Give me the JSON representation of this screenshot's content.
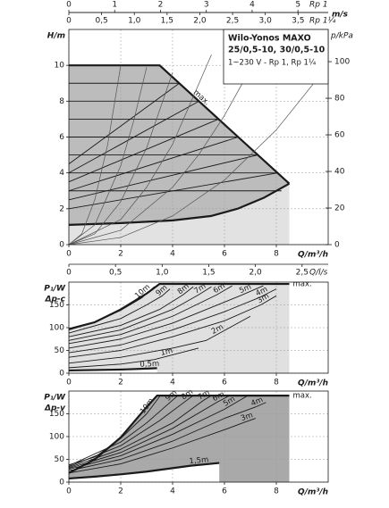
{
  "chart_data": [
    {
      "type": "line",
      "title": [
        "Wilo-Yonos MAXO",
        "25/0,5-10, 30/0,5-10"
      ],
      "subtitle": "1~230 V - Rp 1, Rp 1¼",
      "ylabel": [
        "H/m"
      ],
      "xlabel": "Q/m³/h",
      "y2label": "p/kPa",
      "xlim": [
        0,
        10
      ],
      "ylim": [
        0,
        12
      ],
      "y2lim": [
        0,
        117.6
      ],
      "xticks": [
        0,
        2,
        4,
        6,
        8
      ],
      "yticks": [
        0,
        2,
        4,
        6,
        8,
        10
      ],
      "y2ticks": [
        0,
        20,
        40,
        60,
        80,
        100
      ],
      "grid": true,
      "x2axes": [
        {
          "side": "above",
          "unit": "Rp 1",
          "title": "m/s",
          "lim": [
            0,
            5.66
          ],
          "ticks": [
            0,
            1,
            2,
            3,
            4,
            5
          ]
        },
        {
          "side": "below",
          "unit": "Rp 1¼",
          "lim": [
            0,
            3.96
          ],
          "ticks": [
            0,
            {
              "value": 0.5,
              "label": "0,5"
            },
            {
              "value": 1.0,
              "label": "1,0"
            },
            {
              "value": 1.5,
              "label": "1,5"
            },
            {
              "value": 2.0,
              "label": "2,0"
            },
            {
              "value": 2.5,
              "label": "2,5"
            },
            {
              "value": 3.0,
              "label": "3,0"
            },
            {
              "value": 3.5,
              "label": "3,5"
            }
          ]
        }
      ],
      "series": [
        {
          "name": "max.",
          "x": [
            0,
            3.5,
            8.5
          ],
          "values": [
            10,
            10,
            3.4
          ],
          "color": "#1a1a1a",
          "style": "bold",
          "fill": "#bcbcbc",
          "label_pos": "along"
        },
        {
          "x": [
            0,
            2,
            4,
            5.5,
            6.5,
            7.5,
            8.5
          ],
          "values": [
            1.1,
            1.2,
            1.35,
            1.6,
            2.0,
            2.6,
            3.4
          ],
          "color": "#1a1a1a",
          "style": "bold",
          "fill": "#e2e2e2"
        },
        {
          "x": [
            0,
            4.26
          ],
          "values": [
            4.5,
            9
          ],
          "color": "#1a1a1a",
          "style": "thin"
        },
        {
          "x": [
            0,
            5.02
          ],
          "values": [
            4,
            8
          ],
          "color": "#1a1a1a",
          "style": "thin"
        },
        {
          "x": [
            0,
            5.77
          ],
          "values": [
            3.5,
            7
          ],
          "color": "#1a1a1a",
          "style": "thin"
        },
        {
          "x": [
            0,
            6.53
          ],
          "values": [
            3,
            6
          ],
          "color": "#1a1a1a",
          "style": "thin"
        },
        {
          "x": [
            0,
            7.29
          ],
          "values": [
            2.5,
            5
          ],
          "color": "#1a1a1a",
          "style": "thin"
        },
        {
          "x": [
            0,
            8.05
          ],
          "values": [
            2,
            4
          ],
          "color": "#1a1a1a",
          "style": "thin"
        },
        {
          "x": [
            0,
            4.26
          ],
          "values": [
            9,
            9
          ],
          "color": "#1a1a1a",
          "style": "thin"
        },
        {
          "x": [
            0,
            5.02
          ],
          "values": [
            8,
            8
          ],
          "color": "#1a1a1a",
          "style": "thin"
        },
        {
          "x": [
            0,
            5.77
          ],
          "values": [
            7,
            7
          ],
          "color": "#1a1a1a",
          "style": "thin"
        },
        {
          "x": [
            0,
            6.53
          ],
          "values": [
            6,
            6
          ],
          "color": "#1a1a1a",
          "style": "thin"
        },
        {
          "x": [
            0,
            7.29
          ],
          "values": [
            5,
            5
          ],
          "color": "#1a1a1a",
          "style": "thin"
        },
        {
          "x": [
            0,
            8.05
          ],
          "values": [
            4,
            4
          ],
          "color": "#1a1a1a",
          "style": "thin"
        },
        {
          "x": [
            0,
            8.2
          ],
          "values": [
            3,
            3
          ],
          "color": "#1a1a1a",
          "style": "thin"
        },
        {
          "x": [
            0,
            0.5,
            1,
            1.5,
            2
          ],
          "values": [
            0,
            0.6,
            2.5,
            5.6,
            10
          ],
          "color": "#555555",
          "style": "light"
        },
        {
          "x": [
            0,
            1,
            2,
            2.5,
            3
          ],
          "values": [
            0,
            1.1,
            4.4,
            6.9,
            9.9
          ],
          "color": "#555555",
          "style": "light"
        },
        {
          "x": [
            0,
            1,
            2,
            3,
            4
          ],
          "values": [
            0,
            0.6,
            2.4,
            5.4,
            9.6
          ],
          "color": "#555555",
          "style": "light"
        },
        {
          "x": [
            0,
            2,
            3,
            4,
            5.5
          ],
          "values": [
            0,
            1.4,
            3.2,
            5.6,
            10.6
          ],
          "color": "#555555",
          "style": "light"
        },
        {
          "x": [
            0,
            2,
            4,
            5,
            6,
            7
          ],
          "values": [
            0,
            0.8,
            3.2,
            5,
            7.2,
            9.8
          ],
          "color": "#555555",
          "style": "light"
        },
        {
          "x": [
            0,
            2,
            4,
            6,
            8,
            10
          ],
          "values": [
            0,
            0.4,
            1.6,
            3.6,
            6.4,
            10
          ],
          "color": "#555555",
          "style": "light"
        }
      ]
    },
    {
      "type": "line",
      "ylabel": [
        "P₁/W",
        "Δp-c"
      ],
      "xlabel": "Q/m³/h",
      "xlim": [
        0,
        10
      ],
      "ylim": [
        0,
        200
      ],
      "xticks": [
        0,
        2,
        4,
        6,
        8
      ],
      "yticks": [
        0,
        50,
        100,
        150
      ],
      "grid": true,
      "x2axes": [
        {
          "side": "below",
          "unit": "Q/l/s",
          "lim": [
            0,
            2.78
          ],
          "ticks": [
            0,
            {
              "value": 0.5,
              "label": "0,5"
            },
            {
              "value": 1.0,
              "label": "1,0"
            },
            {
              "value": 1.5,
              "label": "1,5"
            },
            {
              "value": 2.0,
              "label": "2,0"
            },
            {
              "value": 2.5,
              "label": "2,5"
            }
          ]
        }
      ],
      "series": [
        {
          "name": "max.",
          "x": [
            0,
            1,
            2,
            3,
            3.5,
            8.5
          ],
          "values": [
            97,
            112,
            140,
            175,
            196,
            196
          ],
          "color": "#1a1a1a",
          "style": "bold",
          "fill": "#e0e0e0",
          "label_pos": "end"
        },
        {
          "name": "0,5m",
          "x": [
            0,
            1,
            2,
            3,
            3.4
          ],
          "values": [
            6,
            7,
            8,
            10,
            11
          ],
          "color": "#1a1a1a",
          "style": "bold",
          "fill": "#ffffff",
          "label_pos": "along"
        },
        {
          "name": "1m",
          "x": [
            0,
            2,
            3.3,
            5
          ],
          "values": [
            12,
            20,
            30,
            55
          ],
          "color": "#1a1a1a",
          "style": "thin",
          "label_pos": "along"
        },
        {
          "name": "2m",
          "x": [
            0,
            2,
            4,
            5.3,
            7
          ],
          "values": [
            22,
            35,
            55,
            72,
            125
          ],
          "color": "#1a1a1a",
          "style": "thin",
          "label_pos": "along"
        },
        {
          "name": "3m",
          "x": [
            0,
            2,
            4,
            6,
            7.4,
            8
          ],
          "values": [
            35,
            50,
            80,
            115,
            150,
            170
          ],
          "color": "#1a1a1a",
          "style": "thin",
          "label_pos": "along"
        },
        {
          "name": "4m",
          "x": [
            0,
            2,
            4,
            6,
            7.3,
            8
          ],
          "values": [
            45,
            62,
            95,
            135,
            165,
            185
          ],
          "color": "#1a1a1a",
          "style": "thin",
          "label_pos": "along"
        },
        {
          "name": "5m",
          "x": [
            0,
            2,
            4,
            6.6,
            7.5
          ],
          "values": [
            55,
            75,
            110,
            170,
            192
          ],
          "color": "#1a1a1a",
          "style": "thin",
          "label_pos": "along"
        },
        {
          "name": "6m",
          "x": [
            0,
            2,
            4,
            5.7,
            6.3
          ],
          "values": [
            65,
            85,
            125,
            172,
            192
          ],
          "color": "#1a1a1a",
          "style": "thin",
          "label_pos": "along"
        },
        {
          "name": "7m",
          "x": [
            0,
            2,
            4,
            5,
            5.5
          ],
          "values": [
            72,
            95,
            140,
            172,
            190
          ],
          "color": "#1a1a1a",
          "style": "thin",
          "label_pos": "along"
        },
        {
          "name": "8m",
          "x": [
            0,
            2,
            3.5,
            4.4,
            4.8
          ],
          "values": [
            80,
            105,
            140,
            172,
            190
          ],
          "color": "#1a1a1a",
          "style": "thin",
          "label_pos": "along"
        },
        {
          "name": "9m",
          "x": [
            0,
            2,
            3,
            3.6,
            3.9
          ],
          "values": [
            88,
            120,
            150,
            170,
            185
          ],
          "color": "#1a1a1a",
          "style": "thin",
          "label_pos": "along"
        },
        {
          "name": "10m",
          "x": [
            0,
            1,
            2,
            2.8,
            3.3
          ],
          "values": [
            95,
            112,
            138,
            165,
            190
          ],
          "color": "#1a1a1a",
          "style": "thin",
          "label_pos": "along"
        }
      ]
    },
    {
      "type": "line",
      "ylabel": [
        "P₁/W",
        "Δp-v"
      ],
      "xlabel": "Q/m³/h",
      "xlim": [
        0,
        10
      ],
      "ylim": [
        0,
        200
      ],
      "xticks": [
        0,
        2,
        4,
        6,
        8
      ],
      "yticks": [
        0,
        50,
        100,
        150
      ],
      "grid": true,
      "series": [
        {
          "name": "max.",
          "x": [
            0,
            1,
            2,
            3,
            3.4,
            8.5
          ],
          "values": [
            20,
            50,
            98,
            165,
            190,
            190
          ],
          "color": "#1a1a1a",
          "style": "bold",
          "fill": "#a9a9a9",
          "label_pos": "end"
        },
        {
          "name": "1,5m",
          "x": [
            0,
            1,
            2,
            3,
            4.7,
            5.8
          ],
          "values": [
            8,
            12,
            17,
            23,
            36,
            42
          ],
          "color": "#1a1a1a",
          "style": "bold",
          "fill": "#ffffff",
          "label_pos": "along"
        },
        {
          "name": "3m",
          "x": [
            0,
            2,
            4,
            6,
            6.8,
            7.2
          ],
          "values": [
            20,
            40,
            75,
            115,
            132,
            140
          ],
          "color": "#1a1a1a",
          "style": "thin",
          "label_pos": "along"
        },
        {
          "name": "4m",
          "x": [
            0,
            2,
            4,
            6,
            7.2,
            7.6
          ],
          "values": [
            25,
            50,
            90,
            140,
            165,
            175
          ],
          "color": "#1a1a1a",
          "style": "thin",
          "label_pos": "along"
        },
        {
          "name": "5m",
          "x": [
            0,
            2,
            4,
            6,
            6.9
          ],
          "values": [
            28,
            58,
            105,
            160,
            190
          ],
          "color": "#1a1a1a",
          "style": "thin",
          "label_pos": "along"
        },
        {
          "name": "6m",
          "x": [
            0,
            2,
            4,
            5.7,
            6.2
          ],
          "values": [
            30,
            65,
            118,
            175,
            190
          ],
          "color": "#1a1a1a",
          "style": "thin",
          "label_pos": "along"
        },
        {
          "name": "7m",
          "x": [
            0,
            2,
            4,
            5.2,
            5.5
          ],
          "values": [
            32,
            72,
            130,
            180,
            190
          ],
          "color": "#1a1a1a",
          "style": "thin",
          "label_pos": "along"
        },
        {
          "name": "8m",
          "x": [
            0,
            2,
            3.5,
            4.6,
            4.8
          ],
          "values": [
            34,
            80,
            135,
            182,
            190
          ],
          "color": "#1a1a1a",
          "style": "thin",
          "label_pos": "along"
        },
        {
          "name": "9m",
          "x": [
            0,
            2,
            3,
            4,
            4.2
          ],
          "values": [
            36,
            88,
            130,
            180,
            190
          ],
          "color": "#1a1a1a",
          "style": "thin",
          "label_pos": "along"
        },
        {
          "name": "10m",
          "x": [
            0,
            1,
            2,
            3,
            3.5
          ],
          "values": [
            38,
            55,
            96,
            150,
            188
          ],
          "color": "#1a1a1a",
          "style": "thin",
          "label_pos": "along"
        }
      ]
    }
  ]
}
